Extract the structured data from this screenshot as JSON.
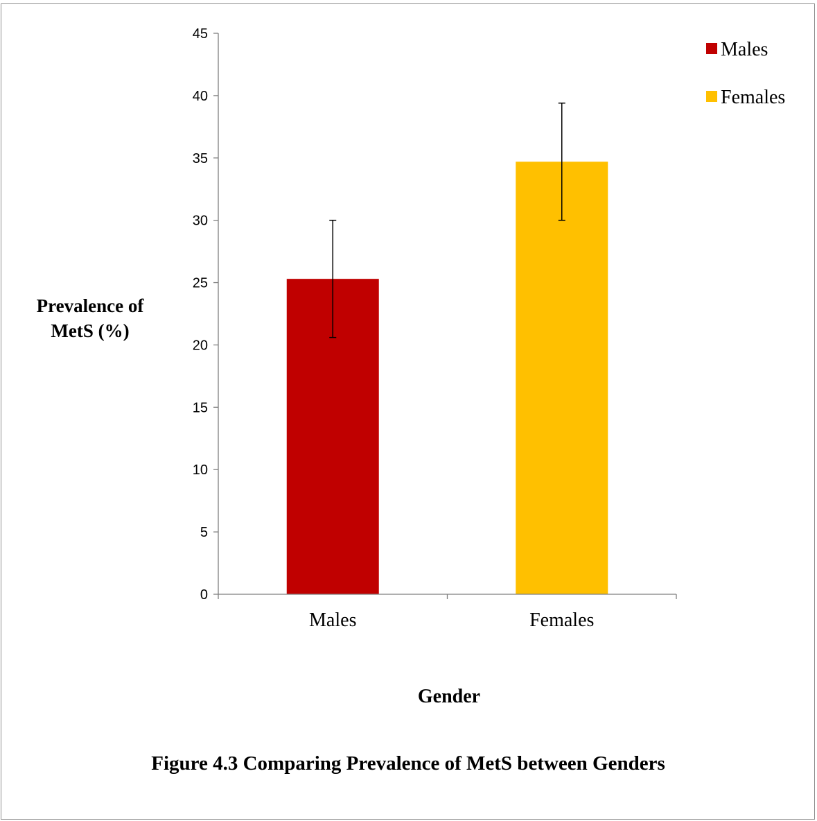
{
  "chart_data": {
    "type": "bar",
    "categories": [
      "Males",
      "Females"
    ],
    "series": [
      {
        "values": [
          25.3,
          34.7
        ],
        "error_low": [
          20.6,
          30.0
        ],
        "error_high": [
          30.0,
          39.4
        ],
        "colors": [
          "#C00000",
          "#FFC000"
        ]
      }
    ],
    "legend": {
      "position": "top-right",
      "entries": [
        {
          "label": "Males",
          "color": "#C00000"
        },
        {
          "label": "Females",
          "color": "#FFC000"
        }
      ]
    },
    "ylim": [
      0,
      45
    ],
    "yticks": [
      "0",
      "5",
      "10",
      "15",
      "20",
      "25",
      "30",
      "35",
      "40",
      "45"
    ],
    "ylabel_lines": [
      "Prevalence of",
      "MetS (%)"
    ],
    "xlabel": "Gender",
    "grid": false
  },
  "caption": "Figure 4.3 Comparing Prevalence of MetS between Genders"
}
